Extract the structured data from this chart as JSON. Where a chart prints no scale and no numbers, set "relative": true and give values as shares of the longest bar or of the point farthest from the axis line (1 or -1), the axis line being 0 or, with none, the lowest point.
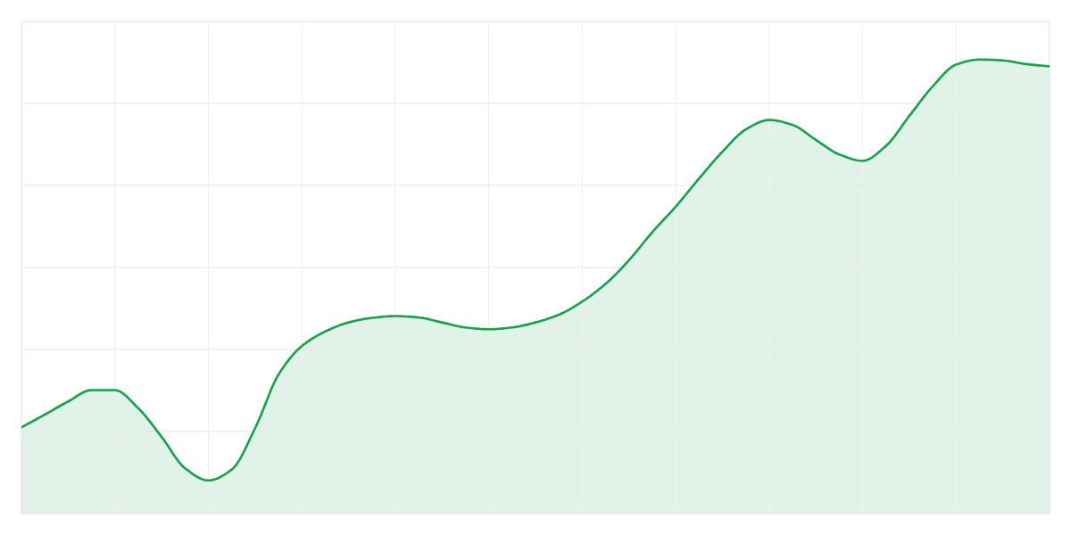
{
  "chart_data": {
    "type": "area",
    "relative": true,
    "categories": [
      null,
      null,
      null,
      null,
      null,
      null,
      null,
      null,
      null,
      null,
      null,
      null,
      null,
      null,
      null,
      null,
      null,
      null,
      null,
      null,
      null,
      null,
      null,
      null,
      null,
      null,
      null,
      null,
      null,
      null,
      null,
      null,
      null,
      null,
      null,
      null,
      null,
      null,
      null,
      null,
      null,
      null,
      null,
      null,
      null
    ],
    "series": [
      {
        "color": "#16a34a",
        "values": [
          0.19,
          0.218,
          0.247,
          0.272,
          0.272,
          0.232,
          0.169,
          0.1,
          0.073,
          0.097,
          0.188,
          0.306,
          0.369,
          0.401,
          0.421,
          0.431,
          0.435,
          0.432,
          0.421,
          0.41,
          0.406,
          0.41,
          0.421,
          0.438,
          0.467,
          0.506,
          0.558,
          0.62,
          0.676,
          0.738,
          0.797,
          0.846,
          0.867,
          0.856,
          0.823,
          0.791,
          0.777,
          0.81,
          0.876,
          0.941,
          0.989,
          1,
          0.998,
          0.99,
          0.985
        ]
      }
    ],
    "grid": true,
    "tick_labels": false
  }
}
